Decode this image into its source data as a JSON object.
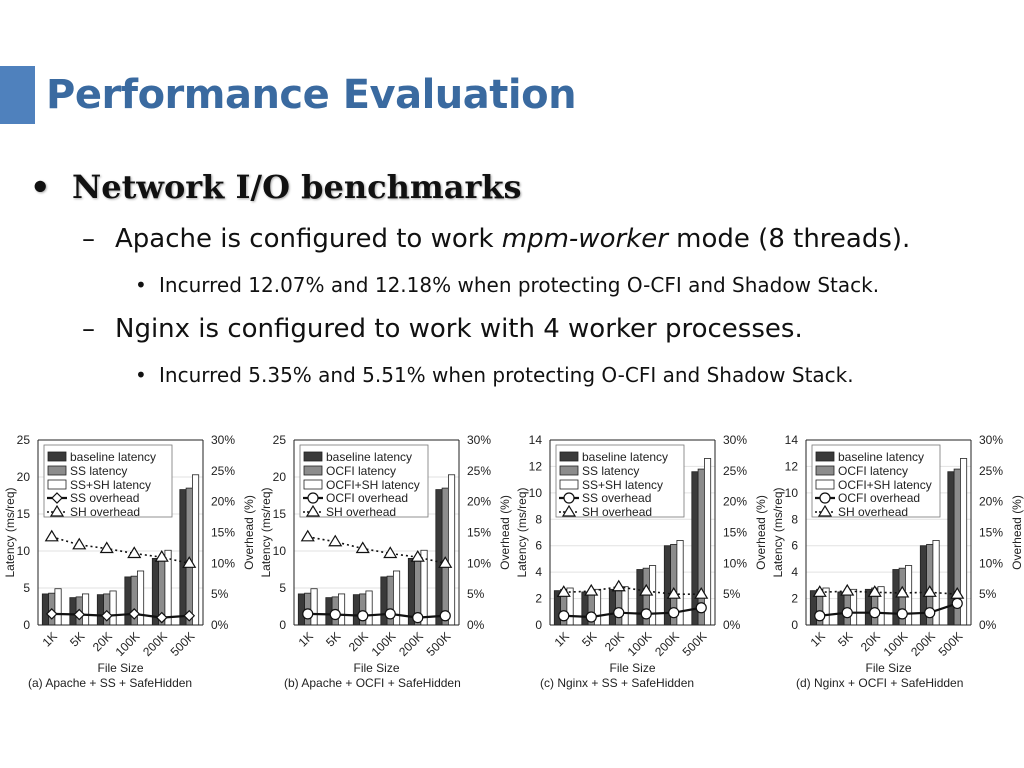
{
  "slide": {
    "title": "Performance Evaluation",
    "bullet1": "Network I/O benchmarks",
    "sub1_pre": "Apache is configured to work ",
    "sub1_em": "mpm-worker",
    "sub1_post": " mode (8 threads).",
    "sub1_detail": "Incurred 12.07% and 12.18% when protecting O-CFI and Shadow Stack.",
    "sub2": "Nginx is configured to work with 4 worker processes.",
    "sub2_detail": "Incurred 5.35% and 5.51% when protecting O-CFI and Shadow Stack.",
    "bullet_glyph": "•",
    "dash_glyph": "–"
  },
  "colors": {
    "title": "#3a6aa0",
    "accent": "#4f81bd",
    "baseline": "#3a3a3a",
    "mid": "#8c8c8c",
    "light": "#ffffff"
  },
  "chart_data": [
    {
      "type": "bar",
      "caption": "(a) Apache + SS + SafeHidden",
      "xlabel": "File Size",
      "ylabel": "Latency (ms/req)",
      "y2label": "Overhead (%)",
      "categories": [
        "1K",
        "5K",
        "20K",
        "100K",
        "200K",
        "500K"
      ],
      "ylim": [
        0,
        25
      ],
      "yticks": [
        0,
        5,
        10,
        15,
        20,
        25
      ],
      "y2lim": [
        0,
        30
      ],
      "y2ticks": [
        "0%",
        "5%",
        "10%",
        "15%",
        "20%",
        "25%",
        "30%"
      ],
      "series": [
        {
          "name": "baseline latency",
          "values": [
            4.2,
            3.7,
            4.1,
            6.5,
            9.0,
            18.3
          ]
        },
        {
          "name": "SS latency",
          "values": [
            4.3,
            3.8,
            4.2,
            6.6,
            9.1,
            18.5
          ]
        },
        {
          "name": "SS+SH latency",
          "values": [
            4.9,
            4.2,
            4.6,
            7.3,
            10.1,
            20.3
          ]
        }
      ],
      "lines": [
        {
          "name": "SS overhead",
          "values": [
            1.8,
            1.7,
            1.5,
            1.8,
            1.2,
            1.5
          ],
          "marker": "diamond"
        },
        {
          "name": "SH overhead",
          "values": [
            14.3,
            13.0,
            12.4,
            11.6,
            11.0,
            10.0
          ],
          "marker": "triangle"
        }
      ]
    },
    {
      "type": "bar",
      "caption": "(b) Apache + OCFI + SafeHidden",
      "xlabel": "File Size",
      "ylabel": "Latency (ms/req)",
      "y2label": "Overhead (%)",
      "categories": [
        "1K",
        "5K",
        "20K",
        "100K",
        "200K",
        "500K"
      ],
      "ylim": [
        0,
        25
      ],
      "yticks": [
        0,
        5,
        10,
        15,
        20,
        25
      ],
      "y2lim": [
        0,
        30
      ],
      "y2ticks": [
        "0%",
        "5%",
        "10%",
        "15%",
        "20%",
        "25%",
        "30%"
      ],
      "series": [
        {
          "name": "baseline latency",
          "values": [
            4.2,
            3.7,
            4.1,
            6.5,
            9.0,
            18.3
          ]
        },
        {
          "name": "OCFI latency",
          "values": [
            4.3,
            3.8,
            4.2,
            6.6,
            9.1,
            18.5
          ]
        },
        {
          "name": "OCFI+SH latency",
          "values": [
            4.9,
            4.2,
            4.6,
            7.3,
            10.1,
            20.3
          ]
        }
      ],
      "lines": [
        {
          "name": "OCFI overhead",
          "values": [
            1.8,
            1.7,
            1.5,
            1.8,
            1.2,
            1.5
          ],
          "marker": "circle"
        },
        {
          "name": "SH overhead",
          "values": [
            14.3,
            13.5,
            12.4,
            11.6,
            11.0,
            10.0
          ],
          "marker": "triangle"
        }
      ]
    },
    {
      "type": "bar",
      "caption": "(c) Nginx + SS + SafeHidden",
      "xlabel": "File Size",
      "ylabel": "Latency (ms/req)",
      "y2label": "Overhead (%)",
      "categories": [
        "1K",
        "5K",
        "20K",
        "100K",
        "200K",
        "500K"
      ],
      "ylim": [
        0,
        14
      ],
      "yticks": [
        0,
        2,
        4,
        6,
        8,
        10,
        12,
        14
      ],
      "y2lim": [
        0,
        30
      ],
      "y2ticks": [
        "0%",
        "5%",
        "10%",
        "15%",
        "20%",
        "25%",
        "30%"
      ],
      "series": [
        {
          "name": "baseline latency",
          "values": [
            2.6,
            2.5,
            2.7,
            4.2,
            6.0,
            11.6
          ]
        },
        {
          "name": "SS latency",
          "values": [
            2.7,
            2.6,
            2.8,
            4.3,
            6.1,
            11.8
          ]
        },
        {
          "name": "SS+SH latency",
          "values": [
            2.8,
            2.7,
            2.9,
            4.5,
            6.4,
            12.6
          ]
        }
      ],
      "lines": [
        {
          "name": "SS overhead",
          "values": [
            1.5,
            1.3,
            2.0,
            1.8,
            2.0,
            2.8
          ],
          "marker": "circle"
        },
        {
          "name": "SH overhead",
          "values": [
            5.3,
            5.5,
            6.2,
            5.5,
            5.0,
            5.0
          ],
          "marker": "triangle"
        }
      ]
    },
    {
      "type": "bar",
      "caption": "(d) Nginx + OCFI + SafeHidden",
      "xlabel": "File Size",
      "ylabel": "Latency (ms/req)",
      "y2label": "Overhead (%)",
      "categories": [
        "1K",
        "5K",
        "20K",
        "100K",
        "200K",
        "500K"
      ],
      "ylim": [
        0,
        14
      ],
      "yticks": [
        0,
        2,
        4,
        6,
        8,
        10,
        12,
        14
      ],
      "y2lim": [
        0,
        30
      ],
      "y2ticks": [
        "0%",
        "5%",
        "10%",
        "15%",
        "20%",
        "25%",
        "30%"
      ],
      "series": [
        {
          "name": "baseline latency",
          "values": [
            2.6,
            2.5,
            2.7,
            4.2,
            6.0,
            11.6
          ]
        },
        {
          "name": "OCFI latency",
          "values": [
            2.7,
            2.6,
            2.8,
            4.3,
            6.1,
            11.8
          ]
        },
        {
          "name": "OCFI+SH latency",
          "values": [
            2.8,
            2.7,
            2.9,
            4.5,
            6.4,
            12.6
          ]
        }
      ],
      "lines": [
        {
          "name": "OCFI overhead",
          "values": [
            1.5,
            2.0,
            2.0,
            1.8,
            2.0,
            3.5
          ],
          "marker": "circle"
        },
        {
          "name": "SH overhead",
          "values": [
            5.3,
            5.5,
            5.3,
            5.2,
            5.3,
            5.0
          ],
          "marker": "triangle"
        }
      ]
    }
  ]
}
